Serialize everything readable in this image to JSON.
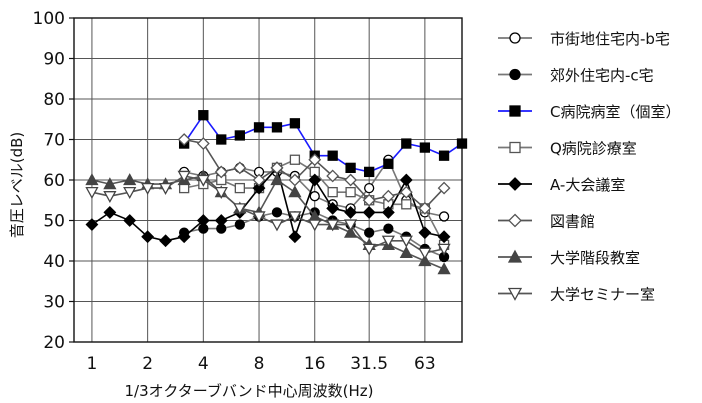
{
  "chart_data": {
    "type": "line",
    "title": "",
    "xlabel": "1/3オクターブバンド中心周波数(Hz)",
    "ylabel": "音圧レベル(dB)",
    "ylim": [
      20,
      100
    ],
    "yticks": [
      "20",
      "30",
      "40",
      "50",
      "60",
      "70",
      "80",
      "90",
      "100"
    ],
    "x_scale": "log",
    "xlim": [
      0.8,
      100
    ],
    "xticks": [
      {
        "value": 1,
        "label": "1"
      },
      {
        "value": 2,
        "label": "2"
      },
      {
        "value": 4,
        "label": "4"
      },
      {
        "value": 8,
        "label": "8"
      },
      {
        "value": 16,
        "label": "16"
      },
      {
        "value": 31.5,
        "label": "31.5"
      },
      {
        "value": 63,
        "label": "63"
      }
    ],
    "grid": true,
    "legend_position": "right",
    "series": [
      {
        "name": "市街地住宅内-b宅",
        "marker": "circle-open",
        "color": "#000000",
        "line_color": "#777777",
        "points": [
          [
            3.15,
            62
          ],
          [
            4,
            61
          ],
          [
            5,
            62
          ],
          [
            6.3,
            63
          ],
          [
            8,
            62
          ],
          [
            10,
            62
          ],
          [
            12.5,
            61
          ],
          [
            16,
            56
          ],
          [
            20,
            54
          ],
          [
            25,
            53
          ],
          [
            31.5,
            58
          ],
          [
            40,
            65
          ],
          [
            50,
            55
          ],
          [
            63,
            52
          ],
          [
            80,
            51
          ]
        ]
      },
      {
        "name": "郊外住宅内-c宅",
        "marker": "circle-filled",
        "color": "#000000",
        "line_color": "#777777",
        "points": [
          [
            3.15,
            47
          ],
          [
            4,
            48
          ],
          [
            5,
            48
          ],
          [
            6.3,
            49
          ],
          [
            8,
            51
          ],
          [
            10,
            52
          ],
          [
            12.5,
            51
          ],
          [
            16,
            52
          ],
          [
            20,
            50
          ],
          [
            25,
            49
          ],
          [
            31.5,
            47
          ],
          [
            40,
            48
          ],
          [
            50,
            46
          ],
          [
            63,
            43
          ],
          [
            80,
            41
          ]
        ]
      },
      {
        "name": "C病院病室（個室）",
        "marker": "square-filled",
        "color": "#000000",
        "line_color": "#1a1aff",
        "points": [
          [
            3.15,
            69
          ],
          [
            4,
            76
          ],
          [
            5,
            70
          ],
          [
            6.3,
            71
          ],
          [
            8,
            73
          ],
          [
            10,
            73
          ],
          [
            12.5,
            74
          ],
          [
            16,
            66
          ],
          [
            20,
            66
          ],
          [
            25,
            63
          ],
          [
            31.5,
            62
          ],
          [
            40,
            64
          ],
          [
            50,
            69
          ],
          [
            63,
            68
          ],
          [
            80,
            66
          ],
          [
            100,
            69
          ]
        ]
      },
      {
        "name": "Q病院診療室",
        "marker": "square-open",
        "color": "#555555",
        "line_color": "#777777",
        "points": [
          [
            3.15,
            58
          ],
          [
            4,
            59
          ],
          [
            5,
            60
          ],
          [
            6.3,
            58
          ],
          [
            8,
            58
          ],
          [
            10,
            63
          ],
          [
            12.5,
            65
          ],
          [
            16,
            62
          ],
          [
            20,
            57
          ],
          [
            25,
            57
          ],
          [
            31.5,
            55
          ],
          [
            40,
            54
          ],
          [
            50,
            54
          ],
          [
            63,
            53
          ],
          [
            80,
            44
          ]
        ]
      },
      {
        "name": "A-大会議室",
        "marker": "diamond-filled",
        "color": "#000000",
        "line_color": "#000000",
        "points": [
          [
            1,
            49
          ],
          [
            1.25,
            52
          ],
          [
            1.6,
            50
          ],
          [
            2,
            46
          ],
          [
            2.5,
            45
          ],
          [
            3.15,
            46
          ],
          [
            4,
            50
          ],
          [
            5,
            50
          ],
          [
            6.3,
            52
          ],
          [
            8,
            58
          ],
          [
            10,
            63
          ],
          [
            12.5,
            46
          ],
          [
            16,
            60
          ],
          [
            20,
            53
          ],
          [
            25,
            52
          ],
          [
            31.5,
            52
          ],
          [
            40,
            52
          ],
          [
            50,
            60
          ],
          [
            63,
            47
          ],
          [
            80,
            46
          ]
        ]
      },
      {
        "name": "図書館",
        "marker": "diamond-open",
        "color": "#555555",
        "line_color": "#555555",
        "points": [
          [
            3.15,
            70
          ],
          [
            4,
            69
          ],
          [
            5,
            62
          ],
          [
            6.3,
            63
          ],
          [
            8,
            60
          ],
          [
            10,
            63
          ],
          [
            12.5,
            60
          ],
          [
            16,
            65
          ],
          [
            20,
            61
          ],
          [
            25,
            60
          ],
          [
            31.5,
            55
          ],
          [
            40,
            56
          ],
          [
            50,
            57
          ],
          [
            63,
            53
          ],
          [
            80,
            58
          ]
        ]
      },
      {
        "name": "大学階段教室",
        "marker": "triangle-up-filled",
        "color": "#444444",
        "line_color": "#555555",
        "points": [
          [
            1,
            60
          ],
          [
            1.25,
            59
          ],
          [
            1.6,
            60
          ],
          [
            2,
            59
          ],
          [
            2.5,
            59
          ],
          [
            3.15,
            60
          ],
          [
            4,
            61
          ],
          [
            5,
            57
          ],
          [
            6.3,
            53
          ],
          [
            8,
            52
          ],
          [
            10,
            60
          ],
          [
            12.5,
            57
          ],
          [
            16,
            51
          ],
          [
            20,
            49
          ],
          [
            25,
            47
          ],
          [
            31.5,
            44
          ],
          [
            40,
            44
          ],
          [
            50,
            42
          ],
          [
            63,
            40
          ],
          [
            80,
            38
          ]
        ]
      },
      {
        "name": "大学セミナー室",
        "marker": "triangle-down-open",
        "color": "#444444",
        "line_color": "#555555",
        "points": [
          [
            1,
            57
          ],
          [
            1.25,
            56
          ],
          [
            1.6,
            57
          ],
          [
            2,
            58
          ],
          [
            2.5,
            58
          ],
          [
            3.15,
            61
          ],
          [
            4,
            60
          ],
          [
            5,
            57
          ],
          [
            6.3,
            53
          ],
          [
            8,
            51
          ],
          [
            10,
            49
          ],
          [
            12.5,
            51
          ],
          [
            16,
            49
          ],
          [
            20,
            49
          ],
          [
            25,
            49
          ],
          [
            31.5,
            43
          ],
          [
            40,
            45
          ],
          [
            50,
            45
          ],
          [
            63,
            42
          ],
          [
            80,
            43
          ]
        ]
      }
    ]
  }
}
